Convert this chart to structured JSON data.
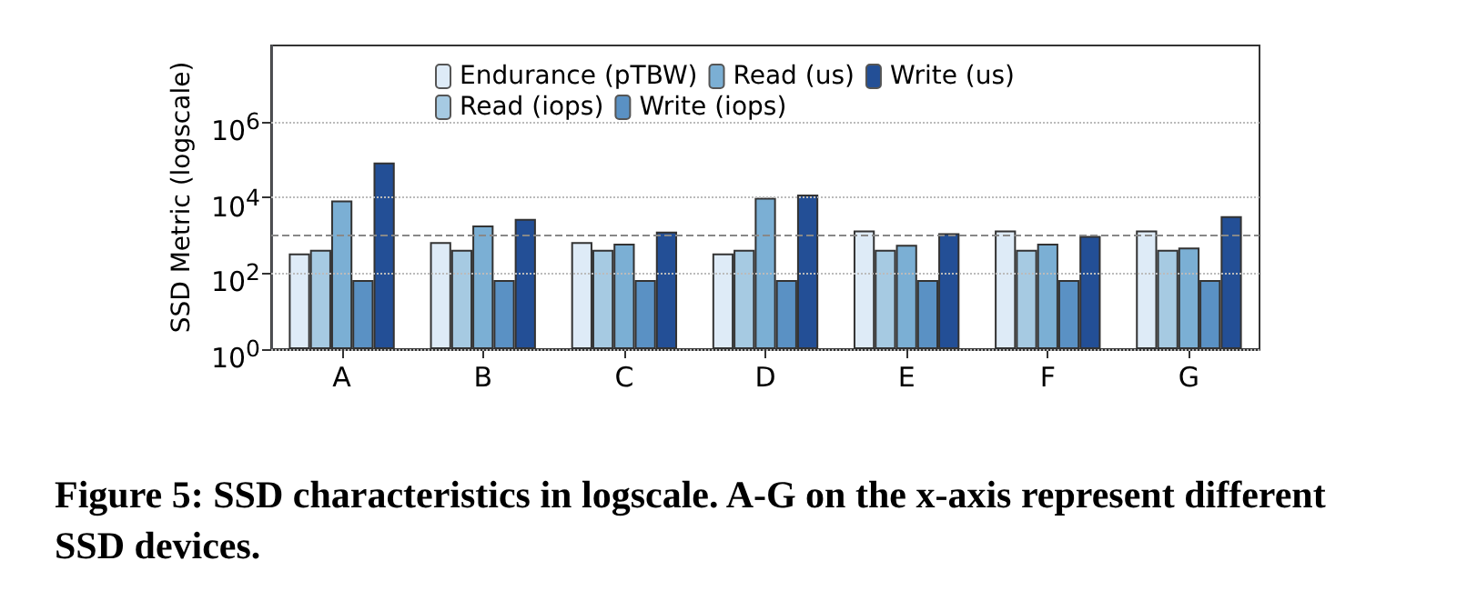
{
  "chart_data": {
    "type": "bar",
    "ylabel": "SSD Metric (logscale)",
    "categories": [
      "A",
      "B",
      "C",
      "D",
      "E",
      "F",
      "G"
    ],
    "series": [
      {
        "name": "Endurance (pTBW)",
        "color": "#deebf7",
        "values": [
          330,
          660,
          660,
          330,
          1340,
          1340,
          1340
        ]
      },
      {
        "name": "Read (iops)",
        "color": "#a6cae2",
        "values": [
          415,
          415,
          415,
          415,
          415,
          415,
          415
        ]
      },
      {
        "name": "Read (us)",
        "color": "#7bafd4",
        "values": [
          8200,
          1800,
          600,
          9700,
          560,
          600,
          475
        ]
      },
      {
        "name": "Write (iops)",
        "color": "#5a91c4",
        "values": [
          66,
          66,
          66,
          66,
          66,
          66,
          66
        ]
      },
      {
        "name": "Write (us)",
        "color": "#234f96",
        "values": [
          83000,
          2700,
          1250,
          11800,
          1130,
          960,
          3200
        ]
      }
    ],
    "log": true,
    "ylim": [
      1,
      100000000
    ],
    "yticks": [
      {
        "value": 1,
        "label": "10$^{0}$"
      },
      {
        "value": 100,
        "label": "10$^{2}$"
      },
      {
        "value": 10000,
        "label": "10$^{4}$"
      },
      {
        "value": 1000000,
        "label": "10$^{6}$"
      }
    ],
    "grid": "y",
    "legend": "top",
    "ref_lines": [
      {
        "axis": "y",
        "value": 1000,
        "label": null,
        "color": "#888888",
        "line_style": "dashed"
      }
    ],
    "annotations": [
      "Figure 5: SSD characteristics in logscale. A-G on the x-axis represent different SSD devices."
    ]
  }
}
